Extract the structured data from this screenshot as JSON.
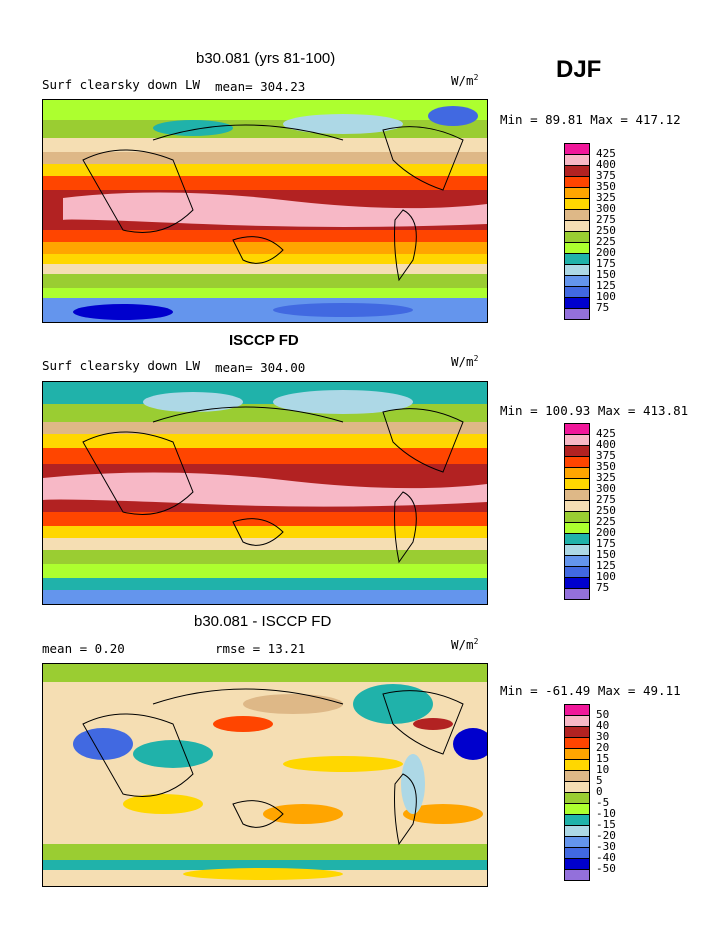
{
  "season": "DJF",
  "panels": [
    {
      "title": "b30.081 (yrs 81-100)",
      "left_label": "Surf clearsky down LW",
      "mid_label": "mean= 304.23",
      "units": "W/m",
      "units_sup": "2",
      "minmax": "Min =  89.81 Max = 417.12",
      "levels": [
        "425",
        "400",
        "375",
        "350",
        "325",
        "300",
        "275",
        "250",
        "225",
        "200",
        "175",
        "150",
        "125",
        "100",
        "75"
      ],
      "colors": [
        "#f0189a",
        "#f7b8c6",
        "#b22222",
        "#ff4500",
        "#ffa500",
        "#ffd700",
        "#deb887",
        "#f5deb3",
        "#9acd32",
        "#adff2f",
        "#20b2aa",
        "#add8e6",
        "#6495ed",
        "#4169e1",
        "#0000cd",
        "#9370db"
      ]
    },
    {
      "title": "ISCCP FD",
      "left_label": "Surf clearsky down LW",
      "mid_label": "mean= 304.00",
      "units": "W/m",
      "units_sup": "2",
      "minmax": "Min = 100.93 Max = 413.81",
      "levels": [
        "425",
        "400",
        "375",
        "350",
        "325",
        "300",
        "275",
        "250",
        "225",
        "200",
        "175",
        "150",
        "125",
        "100",
        "75"
      ],
      "colors": [
        "#f0189a",
        "#f7b8c6",
        "#b22222",
        "#ff4500",
        "#ffa500",
        "#ffd700",
        "#deb887",
        "#f5deb3",
        "#9acd32",
        "#adff2f",
        "#20b2aa",
        "#add8e6",
        "#6495ed",
        "#4169e1",
        "#0000cd",
        "#9370db"
      ]
    },
    {
      "title": "b30.081 - ISCCP FD",
      "left_label": "mean =    0.20",
      "mid_label": "rmse =   13.21",
      "units": "W/m",
      "units_sup": "2",
      "minmax": "Min = -61.49 Max =  49.11",
      "levels": [
        "50",
        "40",
        "30",
        "20",
        "15",
        "10",
        "5",
        "0",
        "-5",
        "-10",
        "-15",
        "-20",
        "-30",
        "-40",
        "-50"
      ],
      "colors": [
        "#f0189a",
        "#f7b8c6",
        "#b22222",
        "#ff4500",
        "#ffa500",
        "#ffd700",
        "#deb887",
        "#f5deb3",
        "#9acd32",
        "#adff2f",
        "#20b2aa",
        "#add8e6",
        "#6495ed",
        "#4169e1",
        "#0000cd",
        "#9370db"
      ]
    }
  ]
}
